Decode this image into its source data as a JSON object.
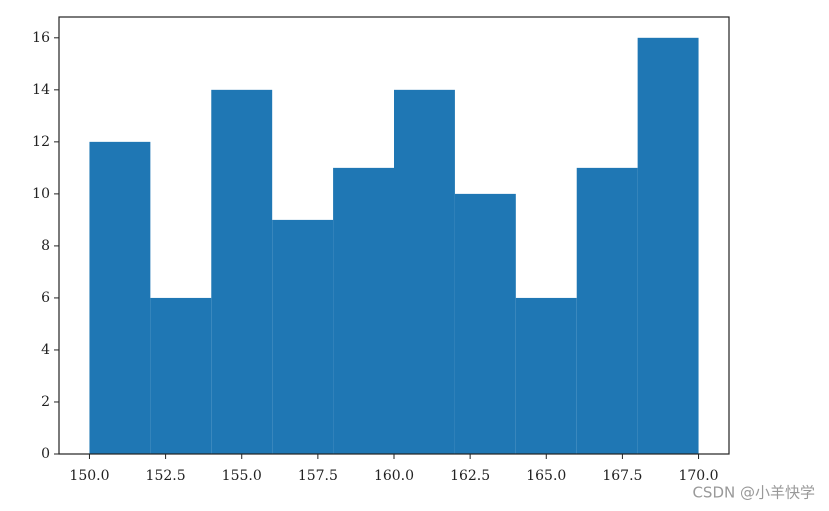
{
  "chart_data": {
    "type": "histogram",
    "bins": [
      150,
      152,
      154,
      156,
      158,
      160,
      162,
      164,
      166,
      168,
      170
    ],
    "counts": [
      12,
      6,
      14,
      9,
      11,
      14,
      10,
      6,
      11,
      16
    ],
    "color": "#1f77b4",
    "xlim": [
      149,
      171
    ],
    "xticks": [
      {
        "value": 150,
        "label": "150.0"
      },
      {
        "value": 152.5,
        "label": "152.5"
      },
      {
        "value": 155,
        "label": "155.0"
      },
      {
        "value": 157.5,
        "label": "157.5"
      },
      {
        "value": 160,
        "label": "160.0"
      },
      {
        "value": 162.5,
        "label": "162.5"
      },
      {
        "value": 165,
        "label": "165.0"
      },
      {
        "value": 167.5,
        "label": "167.5"
      },
      {
        "value": 170,
        "label": "170.0"
      }
    ],
    "ylim": [
      0,
      16.8
    ],
    "yticks": [
      0,
      2,
      4,
      6,
      8,
      10,
      12,
      14,
      16
    ],
    "watermark": "CSDN @小羊快学"
  }
}
